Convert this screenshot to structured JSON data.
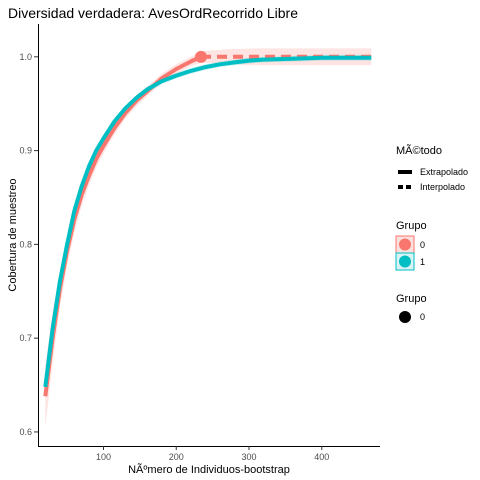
{
  "chart_data": {
    "type": "line",
    "title": "Diversidad verdadera: AvesOrdRecorrido Libre",
    "xlabel": "NÃºmero de Individuos-bootstrap",
    "ylabel": "Cobertura de muestreo",
    "xlim": [
      10,
      480
    ],
    "ylim": [
      0.585,
      1.035
    ],
    "xticks": [
      100,
      200,
      300,
      400
    ],
    "xtick_labels": [
      "100",
      "200",
      "300",
      "400"
    ],
    "yticks": [
      0.6,
      0.7,
      0.8,
      0.9,
      1.0
    ],
    "ytick_labels": [
      "0.6",
      "0.7",
      "0.8",
      "0.9",
      "1.0"
    ],
    "grid": false,
    "legend_position": "right",
    "series": [
      {
        "name": "0",
        "color": "#F8766D",
        "x": [
          20,
          30,
          40,
          50,
          60,
          70,
          80,
          90,
          100,
          115,
          130,
          145,
          160,
          180,
          200,
          220,
          234
        ],
        "y": [
          0.638,
          0.7,
          0.752,
          0.793,
          0.827,
          0.853,
          0.873,
          0.891,
          0.905,
          0.924,
          0.94,
          0.953,
          0.963,
          0.977,
          0.987,
          0.995,
          1.0
        ],
        "lower": [
          0.605,
          0.673,
          0.732,
          0.777,
          0.813,
          0.841,
          0.863,
          0.882,
          0.897,
          0.917,
          0.934,
          0.947,
          0.958,
          0.972,
          0.982,
          0.99,
          0.994
        ],
        "upper": [
          0.671,
          0.727,
          0.772,
          0.809,
          0.841,
          0.865,
          0.883,
          0.9,
          0.913,
          0.931,
          0.946,
          0.959,
          0.968,
          0.982,
          0.992,
          1.0,
          1.006
        ],
        "extrapolated": {
          "x": [
            234,
            270,
            310,
            350,
            400,
            440,
            468
          ],
          "y": [
            1.0,
            1.0,
            1.0,
            1.0,
            1.0,
            1.0,
            1.0
          ],
          "lower": [
            0.994,
            0.992,
            0.991,
            0.991,
            0.991,
            0.991,
            0.991
          ],
          "upper": [
            1.006,
            1.008,
            1.009,
            1.009,
            1.009,
            1.009,
            1.009
          ]
        },
        "reference_point": {
          "x": 234,
          "y": 1.0
        }
      },
      {
        "name": "1",
        "color": "#00BFC4",
        "x": [
          20,
          30,
          40,
          50,
          60,
          70,
          80,
          90,
          100,
          115,
          130,
          145,
          160,
          180,
          200,
          220,
          240,
          260,
          280,
          300,
          320
        ],
        "y": [
          0.648,
          0.71,
          0.76,
          0.8,
          0.836,
          0.862,
          0.883,
          0.9,
          0.913,
          0.931,
          0.945,
          0.956,
          0.965,
          0.974,
          0.98,
          0.985,
          0.989,
          0.992,
          0.994,
          0.996,
          0.997
        ],
        "lower": [
          0.636,
          0.7,
          0.752,
          0.793,
          0.83,
          0.857,
          0.879,
          0.896,
          0.909,
          0.928,
          0.942,
          0.953,
          0.962,
          0.971,
          0.977,
          0.982,
          0.986,
          0.989,
          0.991,
          0.993,
          0.994
        ],
        "upper": [
          0.66,
          0.72,
          0.768,
          0.807,
          0.842,
          0.867,
          0.887,
          0.904,
          0.917,
          0.934,
          0.948,
          0.959,
          0.968,
          0.977,
          0.983,
          0.988,
          0.992,
          0.995,
          0.997,
          0.999,
          1.0
        ],
        "extrapolated": {
          "x": [
            320,
            360,
            400,
            440,
            468
          ],
          "y": [
            0.997,
            0.998,
            0.999,
            0.999,
            0.999
          ],
          "lower": [
            0.994,
            0.995,
            0.996,
            0.996,
            0.996
          ],
          "upper": [
            1.0,
            1.001,
            1.002,
            1.002,
            1.002
          ]
        }
      }
    ],
    "legends": [
      {
        "title": "MÃ©todo",
        "items": [
          {
            "label": "Extrapolado",
            "style": "solid"
          },
          {
            "label": "Interpolado",
            "style": "dashed"
          }
        ]
      },
      {
        "title": "Grupo",
        "items": [
          {
            "label": "0",
            "color": "#F8766D"
          },
          {
            "label": "1",
            "color": "#00BFC4"
          }
        ]
      },
      {
        "title": "Grupo",
        "items": [
          {
            "label": "0",
            "color": "#000000"
          }
        ]
      }
    ]
  }
}
